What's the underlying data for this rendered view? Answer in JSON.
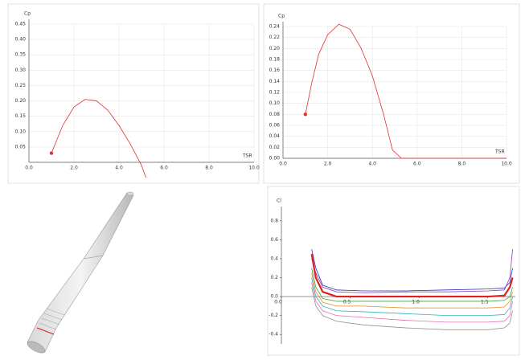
{
  "chart_data": [
    {
      "type": "line",
      "y_label": "Cp",
      "x_label": "TSR",
      "start_marker": true,
      "grid": true,
      "xlim": [
        0,
        10
      ],
      "xticks": [
        {
          "value": 0,
          "label": "0.0"
        },
        {
          "value": 2,
          "label": "2.0"
        },
        {
          "value": 4,
          "label": "4.0"
        },
        {
          "value": 6,
          "label": "6.0"
        },
        {
          "value": 8,
          "label": "8.0"
        },
        {
          "value": 10,
          "label": "10.0"
        }
      ],
      "ylim": [
        0,
        0.45
      ],
      "yticks": [
        {
          "value": 0.05,
          "label": "0.05"
        },
        {
          "value": 0.1,
          "label": "0.10"
        },
        {
          "value": 0.15,
          "label": "0.15"
        },
        {
          "value": 0.2,
          "label": "0.20"
        },
        {
          "value": 0.25,
          "label": "0.25"
        },
        {
          "value": 0.3,
          "label": "0.30"
        },
        {
          "value": 0.35,
          "label": "0.35"
        },
        {
          "value": 0.4,
          "label": "0.40"
        },
        {
          "value": 0.45,
          "label": "0.45"
        }
      ],
      "x": [
        1,
        1.5,
        2,
        2.5,
        3,
        3.5,
        4,
        4.5,
        5,
        5.2
      ],
      "series": [
        {
          "color": "#e03030",
          "values": [
            0.03,
            0.12,
            0.18,
            0.205,
            0.2,
            0.17,
            0.12,
            0.06,
            -0.01,
            -0.05
          ]
        }
      ]
    },
    {
      "type": "line",
      "y_label": "Cp",
      "x_label": "TSR",
      "start_marker": true,
      "grid": true,
      "xlim": [
        0,
        10
      ],
      "xticks": [
        {
          "value": 0,
          "label": "0.0"
        },
        {
          "value": 2,
          "label": "2.0"
        },
        {
          "value": 4,
          "label": "4.0"
        },
        {
          "value": 6,
          "label": "6.0"
        },
        {
          "value": 8,
          "label": "8.0"
        },
        {
          "value": 10,
          "label": "10.0"
        }
      ],
      "ylim": [
        0,
        0.24
      ],
      "yticks": [
        {
          "value": 0,
          "label": "0.00"
        },
        {
          "value": 0.02,
          "label": "0.02"
        },
        {
          "value": 0.04,
          "label": "0.04"
        },
        {
          "value": 0.06,
          "label": "0.06"
        },
        {
          "value": 0.08,
          "label": "0.08"
        },
        {
          "value": 0.1,
          "label": "0.10"
        },
        {
          "value": 0.12,
          "label": "0.12"
        },
        {
          "value": 0.14,
          "label": "0.14"
        },
        {
          "value": 0.16,
          "label": "0.16"
        },
        {
          "value": 0.18,
          "label": "0.18"
        },
        {
          "value": 0.2,
          "label": "0.20"
        },
        {
          "value": 0.22,
          "label": "0.22"
        },
        {
          "value": 0.24,
          "label": "0.24"
        }
      ],
      "x": [
        1,
        1.3,
        1.6,
        2,
        2.5,
        3,
        3.5,
        4,
        4.5,
        4.9,
        5.3,
        6,
        8,
        10
      ],
      "series": [
        {
          "color": "#e03030",
          "values": [
            0.08,
            0.14,
            0.19,
            0.225,
            0.244,
            0.235,
            0.2,
            0.15,
            0.08,
            0.015,
            0,
            0,
            0,
            0
          ]
        }
      ]
    },
    {
      "type": "line",
      "y_label": "Cl",
      "grid": false,
      "xlim": [
        0,
        1.7
      ],
      "xticks": [
        {
          "value": 0,
          "label": "0.0"
        },
        {
          "value": 0.5,
          "label": "0.5"
        },
        {
          "value": 1,
          "label": "1.0"
        },
        {
          "value": 1.5,
          "label": "1.5"
        }
      ],
      "ylim": [
        -0.5,
        0.9
      ],
      "yticks": [
        -0.4,
        -0.2,
        {
          "value": 0,
          "label": "0.0"
        },
        0.2,
        0.4,
        0.6,
        0.8
      ],
      "x": [
        0.22,
        0.25,
        0.3,
        0.4,
        0.6,
        0.9,
        1.2,
        1.5,
        1.62,
        1.66,
        1.68
      ],
      "series": [
        {
          "color": "#3030c8",
          "values": [
            0.5,
            0.3,
            0.12,
            0.07,
            0.06,
            0.06,
            0.07,
            0.08,
            0.09,
            0.15,
            0.3
          ]
        },
        {
          "color": "#9040b0",
          "values": [
            0.4,
            0.25,
            0.1,
            0.05,
            0.04,
            0.05,
            0.05,
            0.06,
            0.07,
            0.2,
            0.5
          ]
        },
        {
          "color": "#40a040",
          "values": [
            0.3,
            0.1,
            -0.02,
            -0.05,
            -0.05,
            -0.05,
            -0.05,
            -0.05,
            -0.04,
            0,
            0.1
          ]
        },
        {
          "color": "#e0902a",
          "values": [
            0.25,
            0.05,
            -0.06,
            -0.1,
            -0.1,
            -0.12,
            -0.12,
            -0.12,
            -0.11,
            -0.05,
            0.05
          ]
        },
        {
          "color": "#30b0c0",
          "values": [
            0.2,
            0,
            -0.1,
            -0.15,
            -0.16,
            -0.18,
            -0.2,
            -0.2,
            -0.19,
            -0.12,
            0
          ]
        },
        {
          "color": "#e070b0",
          "values": [
            0.15,
            -0.05,
            -0.15,
            -0.2,
            -0.22,
            -0.25,
            -0.27,
            -0.27,
            -0.26,
            -0.2,
            -0.05
          ]
        },
        {
          "color": "#909090",
          "values": [
            0.1,
            -0.1,
            -0.2,
            -0.26,
            -0.3,
            -0.33,
            -0.35,
            -0.35,
            -0.33,
            -0.28,
            -0.15
          ]
        },
        {
          "color": "#e02020",
          "width": 2.2,
          "values": [
            0.45,
            0.2,
            0.05,
            0,
            0,
            0,
            0,
            0,
            0.01,
            0.1,
            0.2
          ]
        }
      ]
    }
  ]
}
